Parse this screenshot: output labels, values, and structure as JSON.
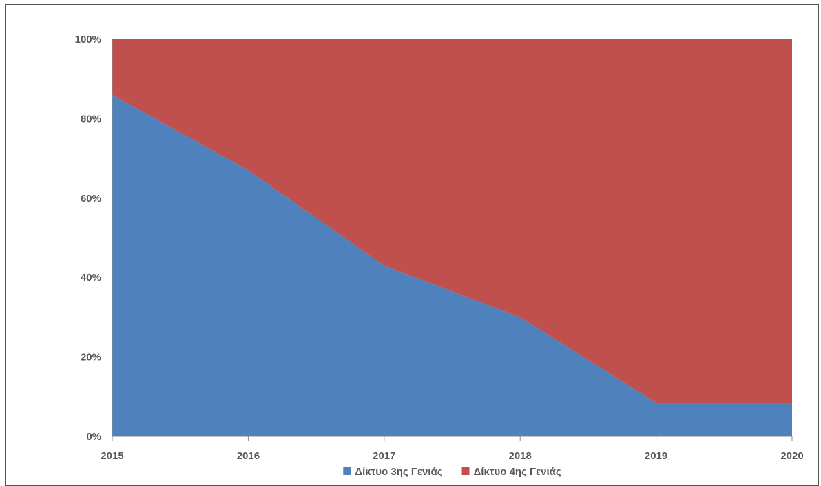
{
  "chart_data": {
    "type": "area",
    "stacked": "percent",
    "x": [
      "2015",
      "2016",
      "2017",
      "2018",
      "2019",
      "2020"
    ],
    "series": [
      {
        "name": "Δίκτυο 3ης Γενιάς",
        "color": "#4F81BD",
        "values": [
          86,
          67,
          43,
          30,
          8.5,
          8.5
        ]
      },
      {
        "name": "Δίκτυο 4ης Γενιάς",
        "color": "#C0504D",
        "values": [
          14,
          33,
          57,
          70,
          91.5,
          91.5
        ]
      }
    ],
    "y_ticks": [
      "0%",
      "20%",
      "40%",
      "60%",
      "80%",
      "100%"
    ],
    "ylim": [
      0,
      100
    ],
    "grid": false,
    "legend_position": "bottom"
  }
}
